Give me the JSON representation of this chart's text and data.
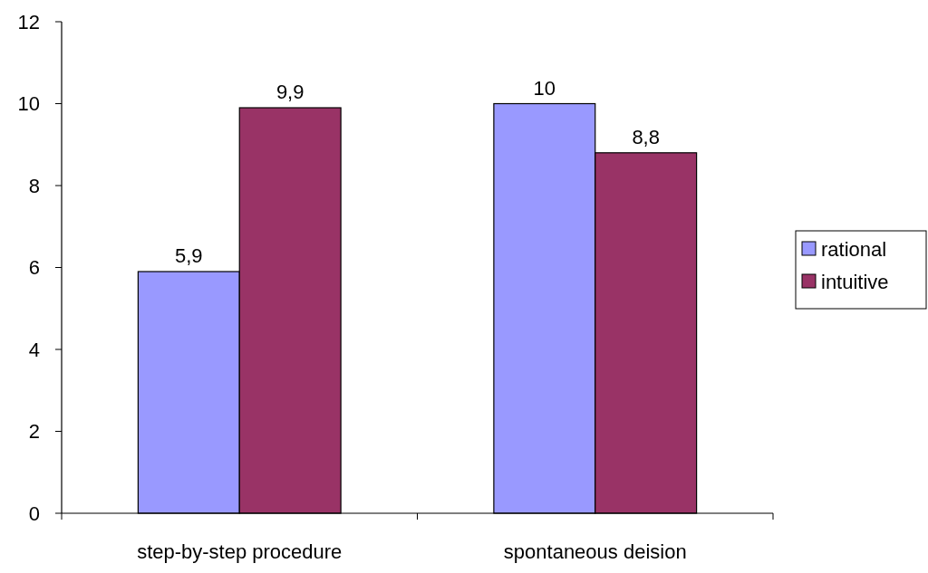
{
  "chart_data": {
    "type": "bar",
    "categories": [
      "step-by-step procedure",
      "spontaneous deision"
    ],
    "series": [
      {
        "name": "rational",
        "color": "#9999ff",
        "values": [
          5.9,
          10
        ],
        "value_labels": [
          "5,9",
          "10"
        ]
      },
      {
        "name": "intuitive",
        "color": "#993366",
        "values": [
          9.9,
          8.8
        ],
        "value_labels": [
          "9,9",
          "8,8"
        ]
      }
    ],
    "ylim": [
      0,
      12
    ],
    "yticks": [
      0,
      2,
      4,
      6,
      8,
      10,
      12
    ],
    "grid": false,
    "legend": "right"
  }
}
